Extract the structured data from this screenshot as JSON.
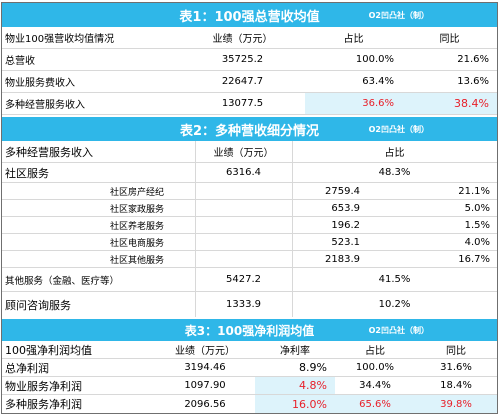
{
  "table1": {
    "title": "表1：100强总营收均值",
    "credit": "O2凹凸社（制）",
    "headers": [
      "物业100强营收均值情况",
      "业绩（万元）",
      "占比",
      "同比"
    ],
    "rows": [
      {
        "name": "总营收",
        "value": "35725.2",
        "share": "100.0%",
        "yoy": "21.6%"
      },
      {
        "name": "物业服务费收入",
        "value": "22647.7",
        "share": "63.4%",
        "yoy": "13.6%"
      },
      {
        "name": "多种经营服务收入",
        "value": "13077.5",
        "share": "36.6%",
        "yoy": "38.4%"
      }
    ]
  },
  "table2": {
    "title": "表2：多种营收细分情况",
    "credit": "O2凹凸社（制）",
    "headers": [
      "多种经营服务收入",
      "业绩（万元）",
      "占比"
    ],
    "community": {
      "name": "社区服务",
      "value": "6316.4",
      "share": "48.3%"
    },
    "sub_rows": [
      {
        "name": "社区房产经纪",
        "value": "2759.4",
        "share": "21.1%"
      },
      {
        "name": "社区家政服务",
        "value": "653.9",
        "share": "5.0%"
      },
      {
        "name": "社区养老服务",
        "value": "196.2",
        "share": "1.5%"
      },
      {
        "name": "社区电商服务",
        "value": "523.1",
        "share": "4.0%"
      },
      {
        "name": "社区其他服务",
        "value": "2183.9",
        "share": "16.7%"
      }
    ],
    "other": {
      "name": "其他服务（金融、医疗等）",
      "value": "5427.2",
      "share": "41.5%"
    },
    "consult": {
      "name": "顾问咨询服务",
      "value": "1333.9",
      "share": "10.2%"
    }
  },
  "table3": {
    "title": "表3：100强净利润均值",
    "credit": "O2凹凸社（制）",
    "headers": [
      "100强净利润均值",
      "业绩（万元）",
      "净利率",
      "占比",
      "同比"
    ],
    "rows": [
      {
        "name": "总净利润",
        "value": "3194.46",
        "margin": "8.9%",
        "share": "100.0%",
        "yoy": "31.6%"
      },
      {
        "name": "物业服务净利润",
        "value": "1097.90",
        "margin": "4.8%",
        "share": "34.4%",
        "yoy": "18.4%"
      },
      {
        "name": "多种服务净利润",
        "value": "2096.56",
        "margin": "16.0%",
        "share": "65.6%",
        "yoy": "39.8%"
      }
    ]
  },
  "colors": {
    "title_bg": "#2fb7e8",
    "highlight_bg": "#ddf3fb",
    "emphasis_red": "#e8202a"
  }
}
